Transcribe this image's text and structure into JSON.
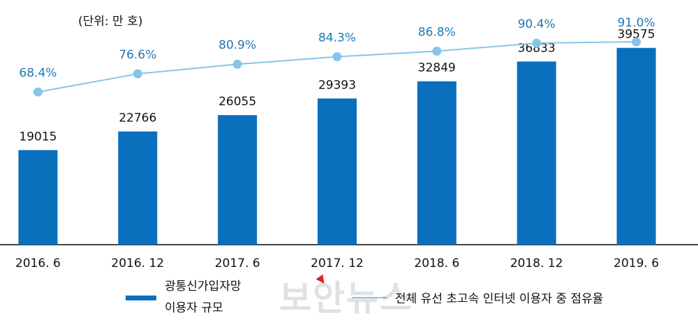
{
  "unit_label": "(단위: 만 호)",
  "legend": {
    "bar_label": "광통신가입자망\n이용자 규모",
    "line_label": "전체 유선 초고속 인터넷 이용자 중 점유율"
  },
  "watermark": "보안뉴스",
  "colors": {
    "bar": "#0a6fbd",
    "line": "#87c5e6",
    "line_label": "#1f78b4",
    "axis": "#444444"
  },
  "chart_data": {
    "type": "bar",
    "categories": [
      "2016. 6",
      "2016. 12",
      "2017. 6",
      "2017. 12",
      "2018. 6",
      "2018. 12",
      "2019. 6"
    ],
    "series": [
      {
        "name": "광통신가입자망 이용자 규모",
        "type": "bar",
        "values": [
          19015,
          22766,
          26055,
          29393,
          32849,
          36833,
          39575
        ],
        "labels": [
          "19015",
          "22766",
          "26055",
          "29393",
          "32849",
          "36833",
          "39575"
        ]
      },
      {
        "name": "전체 유선 초고속 인터넷 이용자 중 점유율",
        "type": "line",
        "values": [
          68.4,
          76.6,
          80.9,
          84.3,
          86.8,
          90.4,
          91.0
        ],
        "labels": [
          "68.4%",
          "76.6%",
          "80.9%",
          "84.3%",
          "86.8%",
          "90.4%",
          "91.0%"
        ]
      }
    ],
    "ylabel": "(단위: 만 호)",
    "ylim_bar": [
      0,
      45000
    ],
    "ylim_line": [
      0,
      100
    ],
    "grid": false,
    "legend_position": "bottom"
  }
}
